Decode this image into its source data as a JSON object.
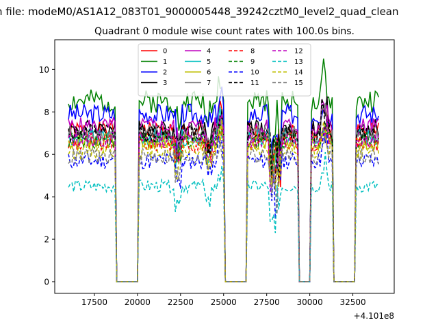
{
  "chart_data": {
    "type": "line",
    "suptitle": "n file: modeM0/AS1A12_083T01_9000005448_39242cztM0_level2_quad_clean",
    "title": "Quadrant 0 module wise count rates with 100.0s bins.",
    "xlabel": "",
    "ylabel": "",
    "x_offset_label": "+4.101e8",
    "xlim": [
      15200,
      34900
    ],
    "ylim": [
      -0.55,
      11.4
    ],
    "xticks": [
      17500,
      20000,
      22500,
      25000,
      27500,
      30000,
      32500
    ],
    "xtick_labels": [
      "17500",
      "20000",
      "22500",
      "25000",
      "27500",
      "30000",
      "32500"
    ],
    "yticks": [
      0,
      2,
      4,
      6,
      8,
      10
    ],
    "ytick_labels": [
      "0",
      "2",
      "4",
      "6",
      "8",
      "10"
    ],
    "x_start": 16000,
    "x_step": 100,
    "gaps": [
      [
        18800,
        20000
      ],
      [
        25100,
        26300
      ],
      [
        29400,
        30000
      ],
      [
        31400,
        32600
      ]
    ],
    "legend_location": "upper center",
    "legend_columns": 4,
    "series": [
      {
        "name": "0",
        "color": "#ff0000",
        "style": "solid",
        "level": 7.1,
        "amp": 0.45,
        "seed": 1
      },
      {
        "name": "1",
        "color": "#008000",
        "style": "solid",
        "level": 8.5,
        "amp": 0.55,
        "seed": 2
      },
      {
        "name": "2",
        "color": "#0000ff",
        "style": "solid",
        "level": 7.9,
        "amp": 0.5,
        "seed": 3
      },
      {
        "name": "3",
        "color": "#000000",
        "style": "solid",
        "level": 7.2,
        "amp": 0.45,
        "seed": 4
      },
      {
        "name": "4",
        "color": "#bf00bf",
        "style": "solid",
        "level": 7.3,
        "amp": 0.45,
        "seed": 5
      },
      {
        "name": "5",
        "color": "#00bfbf",
        "style": "solid",
        "level": 6.8,
        "amp": 0.4,
        "seed": 6
      },
      {
        "name": "6",
        "color": "#bfbf00",
        "style": "solid",
        "level": 6.6,
        "amp": 0.4,
        "seed": 7
      },
      {
        "name": "7",
        "color": "#808080",
        "style": "solid",
        "level": 6.9,
        "amp": 0.45,
        "seed": 8
      },
      {
        "name": "8",
        "color": "#ff0000",
        "style": "dashed",
        "level": 6.5,
        "amp": 0.4,
        "seed": 9
      },
      {
        "name": "9",
        "color": "#008000",
        "style": "dashed",
        "level": 6.7,
        "amp": 0.4,
        "seed": 10
      },
      {
        "name": "10",
        "color": "#0000ff",
        "style": "dashed",
        "level": 5.7,
        "amp": 0.4,
        "seed": 11
      },
      {
        "name": "11",
        "color": "#000000",
        "style": "dashed",
        "level": 7.0,
        "amp": 0.45,
        "seed": 12
      },
      {
        "name": "12",
        "color": "#bf00bf",
        "style": "dashed",
        "level": 6.7,
        "amp": 0.4,
        "seed": 13
      },
      {
        "name": "13",
        "color": "#00bfbf",
        "style": "dashed",
        "level": 4.5,
        "amp": 0.3,
        "seed": 14
      },
      {
        "name": "14",
        "color": "#bfbf00",
        "style": "dashed",
        "level": 6.2,
        "amp": 0.4,
        "seed": 15
      },
      {
        "name": "15",
        "color": "#808080",
        "style": "dashed",
        "level": 5.9,
        "amp": 0.4,
        "seed": 16
      }
    ]
  }
}
